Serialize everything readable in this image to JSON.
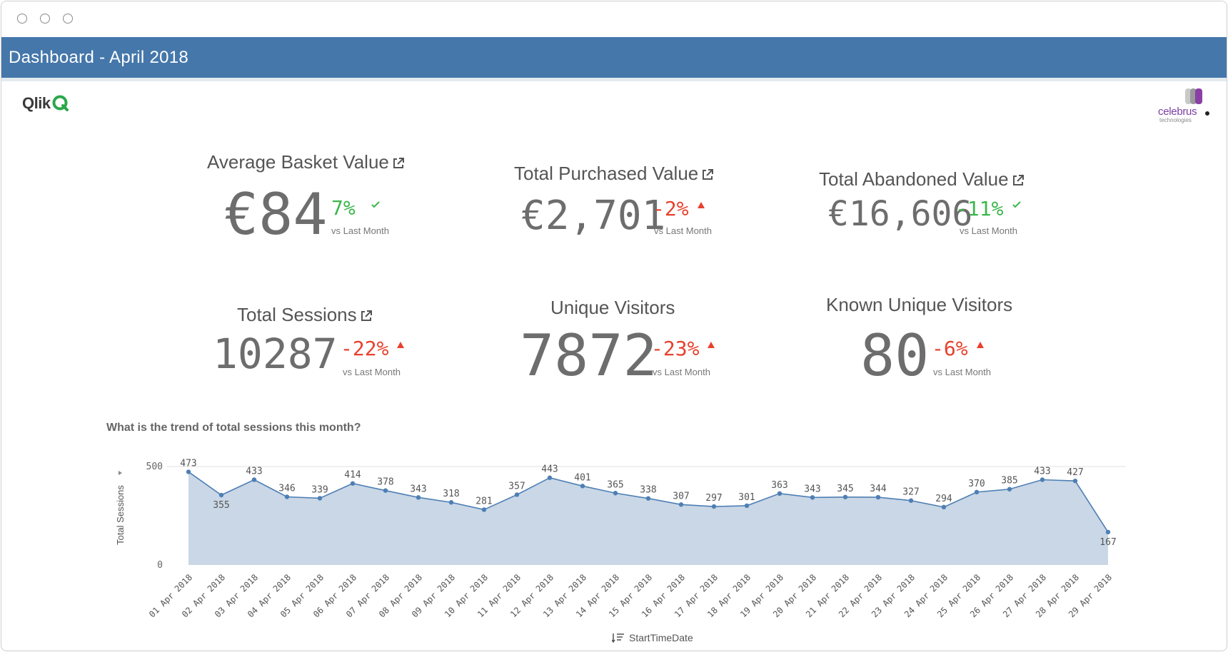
{
  "window": {
    "title": "Dashboard - April 2018"
  },
  "logos": {
    "qlik": "Qlik",
    "celebrus": "celebrus",
    "celebrus_sub": "technologies"
  },
  "colors": {
    "banner": "#4577aa",
    "good": "#3cb74b",
    "bad": "#e8412e",
    "area": "#c9d7e6",
    "line": "#4e7fb4"
  },
  "kpis": [
    {
      "title": "Average Basket Value",
      "value": "€84",
      "delta": "7%",
      "trend": "good",
      "vs": "vs Last Month",
      "has_link": true
    },
    {
      "title": "Total Purchased Value",
      "value": "€2,701",
      "delta": "-2%",
      "trend": "bad",
      "vs": "vs Last Month",
      "has_link": true
    },
    {
      "title": "Total Abandoned Value",
      "value": "€16,606",
      "delta": "-11%",
      "trend": "good",
      "vs": "vs Last Month",
      "has_link": true
    },
    {
      "title": "Total Sessions",
      "value": "10287",
      "delta": "-22%",
      "trend": "bad",
      "vs": "vs Last Month",
      "has_link": true
    },
    {
      "title": "Unique Visitors",
      "value": "7872",
      "delta": "-23%",
      "trend": "bad",
      "vs": "vs Last Month",
      "has_link": false
    },
    {
      "title": "Known Unique Visitors",
      "value": "80",
      "delta": "-6%",
      "trend": "bad",
      "vs": "vs Last Month",
      "has_link": false
    }
  ],
  "chart_data": {
    "type": "area",
    "title": "What is the trend of total sessions this month?",
    "xlabel": "StartTimeDate",
    "ylabel": "Total Sessions",
    "ylim": [
      0,
      500
    ],
    "yticks": [
      "0",
      "500"
    ],
    "categories": [
      "01 Apr 2018",
      "02 Apr 2018",
      "03 Apr 2018",
      "04 Apr 2018",
      "05 Apr 2018",
      "06 Apr 2018",
      "07 Apr 2018",
      "08 Apr 2018",
      "09 Apr 2018",
      "10 Apr 2018",
      "11 Apr 2018",
      "12 Apr 2018",
      "13 Apr 2018",
      "14 Apr 2018",
      "15 Apr 2018",
      "16 Apr 2018",
      "17 Apr 2018",
      "18 Apr 2018",
      "19 Apr 2018",
      "20 Apr 2018",
      "21 Apr 2018",
      "22 Apr 2018",
      "23 Apr 2018",
      "24 Apr 2018",
      "25 Apr 2018",
      "26 Apr 2018",
      "27 Apr 2018",
      "28 Apr 2018",
      "29 Apr 2018"
    ],
    "values": [
      473,
      355,
      433,
      346,
      339,
      414,
      378,
      343,
      318,
      281,
      357,
      443,
      401,
      365,
      338,
      307,
      297,
      301,
      363,
      343,
      345,
      344,
      327,
      294,
      370,
      385,
      433,
      427,
      167
    ]
  }
}
